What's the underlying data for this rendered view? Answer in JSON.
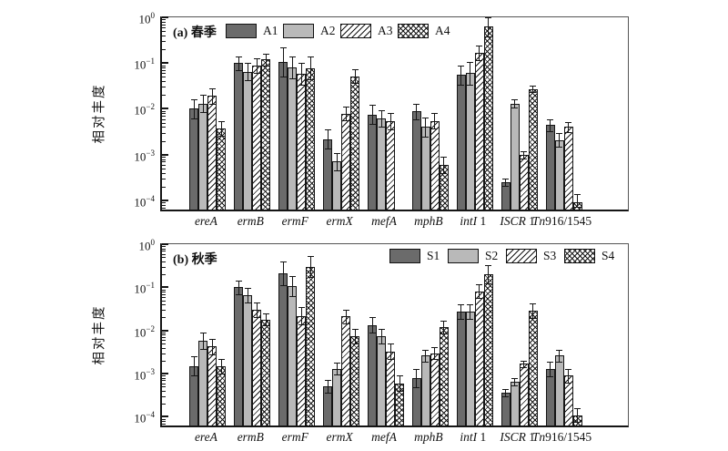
{
  "styles": {
    "dark_fill": "#6b6b6b",
    "light_fill": "#b9b9b9",
    "hatch_color": "#151515",
    "axis_color": "#151515",
    "background": "#ffffff"
  },
  "chart_data": [
    {
      "type": "bar",
      "panel_tag": "(a)",
      "title": "春季",
      "ylabel": "相对丰度",
      "yscale": "log",
      "ylim": [
        6.3e-05,
        1
      ],
      "y_tick_exponents": [
        0,
        -1,
        -2,
        -3,
        -4
      ],
      "grid": false,
      "legend_position": "top-left-inside",
      "categories": [
        "ereA",
        "ermB",
        "ermF",
        "ermX",
        "mefA",
        "mphB",
        "intI 1",
        "ISCR 1",
        "Tn916/1545"
      ],
      "categories_fmt": [
        {
          "em": "ereA",
          "rm": ""
        },
        {
          "em": "ermB",
          "rm": ""
        },
        {
          "em": "ermF",
          "rm": ""
        },
        {
          "em": "ermX",
          "rm": ""
        },
        {
          "em": "mefA",
          "rm": ""
        },
        {
          "em": "mphB",
          "rm": ""
        },
        {
          "em": "intI",
          "rm": " 1"
        },
        {
          "em": "ISCR",
          "rm": " 1"
        },
        {
          "em": "Tn",
          "rm": "916/1545"
        }
      ],
      "series": [
        {
          "name": "A1",
          "pattern": "solid-dark",
          "values": [
            0.01,
            0.1,
            0.105,
            0.0022,
            0.0075,
            0.0088,
            0.055,
            0.00025,
            0.0044
          ],
          "err_hi": [
            0.016,
            0.14,
            0.22,
            0.0035,
            0.012,
            0.013,
            0.09,
            0.0003,
            0.006
          ]
        },
        {
          "name": "A2",
          "pattern": "solid-light",
          "values": [
            0.013,
            0.065,
            0.08,
            0.0007,
            0.0062,
            0.004,
            0.06,
            0.013,
            0.0021
          ],
          "err_hi": [
            0.02,
            0.1,
            0.14,
            0.0011,
            0.0095,
            0.0065,
            0.105,
            0.016,
            0.0029
          ]
        },
        {
          "name": "A3",
          "pattern": "diagonal-hatch",
          "values": [
            0.019,
            0.09,
            0.058,
            0.0078,
            0.0053,
            0.0055,
            0.165,
            0.001,
            0.004
          ],
          "err_hi": [
            0.028,
            0.13,
            0.1,
            0.011,
            0.008,
            0.008,
            0.24,
            0.0012,
            0.0052
          ]
        },
        {
          "name": "A4",
          "pattern": "crosshatch",
          "values": [
            0.0038,
            0.12,
            0.078,
            0.052,
            null,
            0.0006,
            0.62,
            0.027,
            9e-05
          ],
          "err_hi": [
            0.0055,
            0.16,
            0.14,
            0.075,
            null,
            0.0009,
            1.0,
            0.032,
            0.00014
          ]
        }
      ]
    },
    {
      "type": "bar",
      "panel_tag": "(b)",
      "title": "秋季",
      "ylabel": "相对丰度",
      "yscale": "log",
      "ylim": [
        6.3e-05,
        1
      ],
      "y_tick_exponents": [
        0,
        -1,
        -2,
        -3,
        -4
      ],
      "grid": false,
      "legend_position": "top-right-inside",
      "categories": [
        "ereA",
        "ermB",
        "ermF",
        "ermX",
        "mefA",
        "mphB",
        "intI 1",
        "ISCR 1",
        "Tn916/1545"
      ],
      "categories_fmt": [
        {
          "em": "ereA",
          "rm": ""
        },
        {
          "em": "ermB",
          "rm": ""
        },
        {
          "em": "ermF",
          "rm": ""
        },
        {
          "em": "ermX",
          "rm": ""
        },
        {
          "em": "mefA",
          "rm": ""
        },
        {
          "em": "mphB",
          "rm": ""
        },
        {
          "em": "intI",
          "rm": " 1"
        },
        {
          "em": "ISCR",
          "rm": " 1"
        },
        {
          "em": "Tn",
          "rm": "916/1545"
        }
      ],
      "series": [
        {
          "name": "S1",
          "pattern": "solid-dark",
          "values": [
            0.0015,
            0.1,
            0.21,
            0.0005,
            0.0135,
            0.0008,
            0.027,
            0.00037,
            0.0013
          ],
          "err_hi": [
            0.0025,
            0.145,
            0.4,
            0.0007,
            0.02,
            0.0013,
            0.04,
            0.00045,
            0.0019
          ]
        },
        {
          "name": "S2",
          "pattern": "solid-light",
          "values": [
            0.0058,
            0.065,
            0.105,
            0.0013,
            0.0075,
            0.0026,
            0.027,
            0.00065,
            0.0026
          ],
          "err_hi": [
            0.009,
            0.095,
            0.18,
            0.0018,
            0.011,
            0.0036,
            0.04,
            0.0008,
            0.0035
          ]
        },
        {
          "name": "S3",
          "pattern": "diagonal-hatch",
          "values": [
            0.0043,
            0.03,
            0.022,
            0.021,
            0.0033,
            0.003,
            0.08,
            0.0017,
            0.0009
          ],
          "err_hi": [
            0.0065,
            0.045,
            0.035,
            0.03,
            0.005,
            0.0042,
            0.115,
            0.002,
            0.0013
          ]
        },
        {
          "name": "S4",
          "pattern": "crosshatch",
          "values": [
            0.0015,
            0.018,
            0.3,
            0.0075,
            0.0006,
            0.012,
            0.2,
            0.029,
            0.00011
          ],
          "err_hi": [
            0.0022,
            0.025,
            0.52,
            0.011,
            0.0009,
            0.017,
            0.32,
            0.043,
            0.00016
          ]
        }
      ]
    }
  ]
}
